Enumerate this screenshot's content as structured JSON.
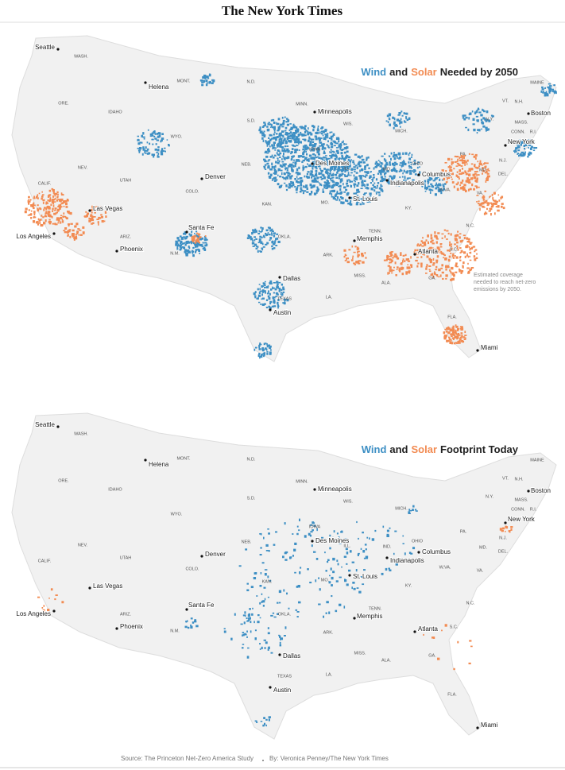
{
  "header": {
    "title": "The New York Times"
  },
  "maps": [
    {
      "title": {
        "wind": "Wind",
        "and": "and",
        "solar": "Solar",
        "rest": "Needed by 2050"
      },
      "annotation": [
        "Estimated coverage",
        "needed to reach net-zero",
        "emissions by 2050."
      ]
    },
    {
      "title": {
        "wind": "Wind",
        "and": "and",
        "solar": "Solar",
        "rest": "Footprint Today"
      }
    }
  ],
  "cities": [
    "Seattle",
    "Helena",
    "Minneapolis",
    "Boston",
    "New York",
    "Des Moines",
    "Columbus",
    "Indianapolis",
    "Denver",
    "St. Louis",
    "Las Vegas",
    "Los Angeles",
    "Phoenix",
    "Santa Fe",
    "Memphis",
    "Atlanta",
    "Dallas",
    "Austin",
    "Miami"
  ],
  "states": [
    "WASH.",
    "MONT.",
    "N.D.",
    "MAINE",
    "ORE.",
    "IDAHO",
    "MINN.",
    "VT.",
    "N.H.",
    "S.D.",
    "WIS.",
    "MASS.",
    "N.Y.",
    "CONN.",
    "R.I.",
    "MICH.",
    "WYO.",
    "NEB.",
    "IOWA",
    "PA.",
    "OHIO",
    "NEV.",
    "N.J.",
    "UTAH",
    "ILL.",
    "IND.",
    "MD.",
    "DEL.",
    "CALIF.",
    "COLO.",
    "W.VA.",
    "KAN.",
    "MO.",
    "VA.",
    "KY.",
    "ARIZ.",
    "OKLA.",
    "TENN.",
    "N.C.",
    "N.M.",
    "ARK.",
    "S.C.",
    "MISS.",
    "ALA.",
    "GA.",
    "TEXAS",
    "LA.",
    "FLA."
  ],
  "footer": {
    "source": "Source: The Princeton Net-Zero America Study",
    "byline": "By: Veronica Penney/The New York Times"
  }
}
